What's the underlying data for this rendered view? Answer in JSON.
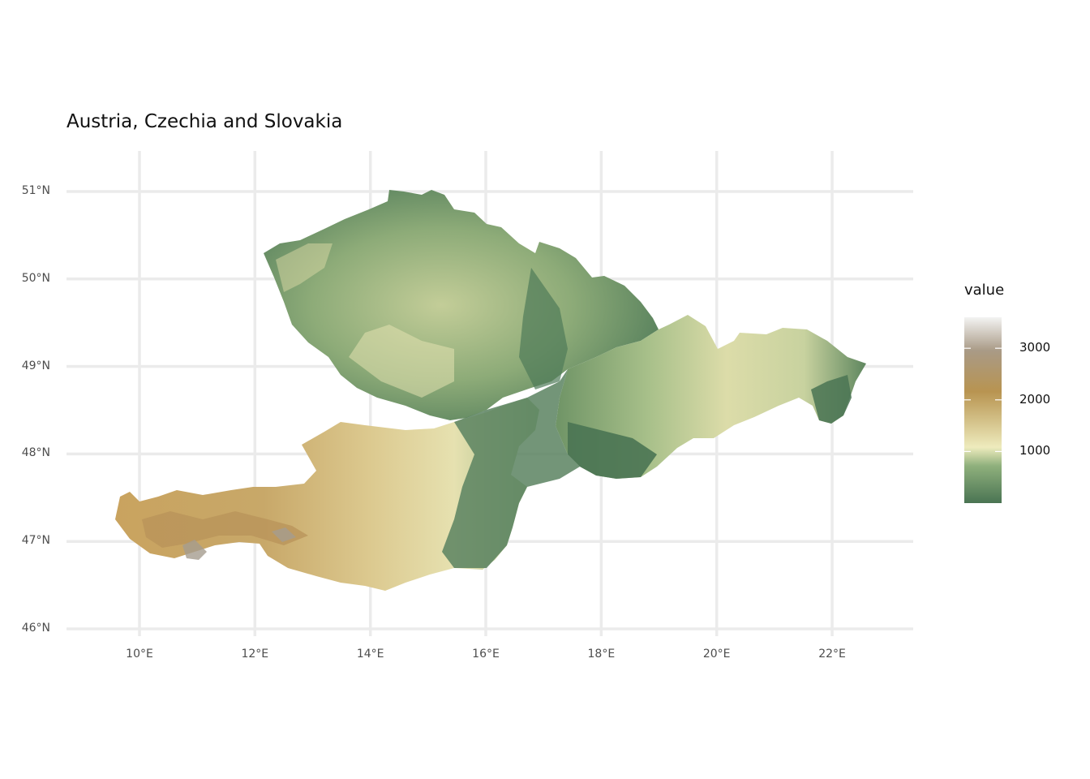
{
  "map": {
    "title": "Austria, Czechia and Slovakia",
    "legend": {
      "title": "value",
      "ticks": [
        {
          "label": "3000",
          "value": 3000
        },
        {
          "label": "2000",
          "value": 2000
        },
        {
          "label": "1000",
          "value": 1000
        }
      ],
      "range": [
        0,
        3600
      ],
      "colors": [
        "#4a7453",
        "#8fb07c",
        "#eeebbd",
        "#d2bf86",
        "#b89451",
        "#a99a86",
        "#f3f3f2"
      ]
    },
    "graticule": {
      "longitudes": [
        {
          "label": "10°E",
          "value": 10
        },
        {
          "label": "12°E",
          "value": 12
        },
        {
          "label": "14°E",
          "value": 14
        },
        {
          "label": "16°E",
          "value": 16
        },
        {
          "label": "18°E",
          "value": 18
        },
        {
          "label": "20°E",
          "value": 20
        },
        {
          "label": "22°E",
          "value": 22
        }
      ],
      "latitudes": [
        {
          "label": "51°N",
          "value": 51
        },
        {
          "label": "50°N",
          "value": 50
        },
        {
          "label": "49°N",
          "value": 49
        },
        {
          "label": "48°N",
          "value": 48
        },
        {
          "label": "47°N",
          "value": 47
        },
        {
          "label": "46°N",
          "value": 46
        }
      ],
      "grid_color": "#ebebeb"
    },
    "land_colors": {
      "lowland": "#4a7453",
      "hills": "#9fba86",
      "upland": "#e5e2b3",
      "alpine": "#b89451",
      "peaks": "#a39a8c"
    },
    "regions": [
      "Austria",
      "Czechia",
      "Slovakia"
    ]
  }
}
